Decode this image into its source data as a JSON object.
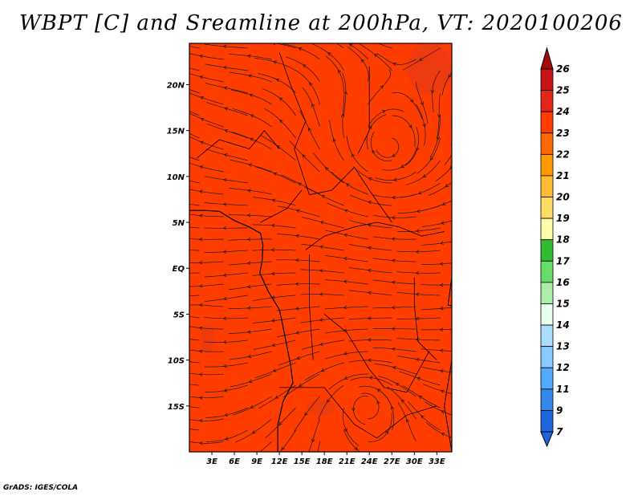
{
  "title": "WBPT [C] and Sreamline at 200hPa, VT: 2020100206",
  "credit": "GrADS: IGES/COLA",
  "colors": {
    "field": "#ff3d00",
    "field_dark": "#e03216",
    "streamline": "#1a1a1a",
    "coast": "#000000"
  },
  "chart_data": {
    "type": "heatmap",
    "title": "WBPT [C] and Sreamline at 200hPa, VT: 2020100206",
    "xlabel": "",
    "ylabel": "",
    "xlim": [
      0,
      35
    ],
    "ylim": [
      -20,
      24.5
    ],
    "x_ticks": [
      {
        "value": 3,
        "label": "3E"
      },
      {
        "value": 6,
        "label": "6E"
      },
      {
        "value": 9,
        "label": "9E"
      },
      {
        "value": 12,
        "label": "12E"
      },
      {
        "value": 15,
        "label": "15E"
      },
      {
        "value": 18,
        "label": "18E"
      },
      {
        "value": 21,
        "label": "21E"
      },
      {
        "value": 24,
        "label": "24E"
      },
      {
        "value": 27,
        "label": "27E"
      },
      {
        "value": 30,
        "label": "30E"
      },
      {
        "value": 33,
        "label": "33E"
      }
    ],
    "y_ticks": [
      {
        "value": 20,
        "label": "20N"
      },
      {
        "value": 15,
        "label": "15N"
      },
      {
        "value": 10,
        "label": "10N"
      },
      {
        "value": 5,
        "label": "5N"
      },
      {
        "value": 0,
        "label": "EQ"
      },
      {
        "value": -5,
        "label": "5S"
      },
      {
        "value": -10,
        "label": "10S"
      },
      {
        "value": -15,
        "label": "15S"
      }
    ],
    "colorbar": {
      "levels": [
        "26",
        "25",
        "24",
        "23",
        "22",
        "21",
        "20",
        "19",
        "18",
        "17",
        "16",
        "15",
        "14",
        "13",
        "12",
        "11",
        "9",
        "7"
      ],
      "colors": [
        "#a50a0a",
        "#c81414",
        "#e42619",
        "#ff3d00",
        "#ff6a00",
        "#ff9900",
        "#ffbb33",
        "#ffdd66",
        "#ffffaa",
        "#33bb33",
        "#66dd66",
        "#aaeeaa",
        "#e6ffee",
        "#aaddff",
        "#88ccff",
        "#55aaff",
        "#3388ee",
        "#1f66dd"
      ]
    },
    "field_value_dominant": "23-24",
    "features": [
      {
        "type": "anticyclone",
        "lon": 26.5,
        "lat": 13
      },
      {
        "type": "cyclone",
        "lon": 23.5,
        "lat": -14.5
      }
    ]
  }
}
